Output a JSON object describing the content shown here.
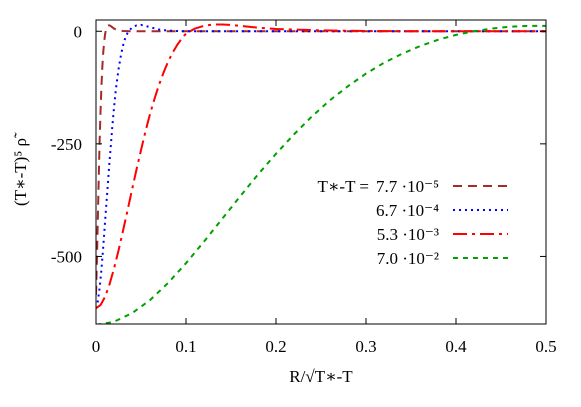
{
  "chart_data": {
    "type": "line",
    "title": "",
    "xlabel": "R/√T∗-T",
    "ylabel": "(T∗-T)⁵ ρ̃",
    "xlim": [
      0,
      0.5
    ],
    "ylim": [
      -650,
      25
    ],
    "x_ticks": [
      0,
      0.1,
      0.2,
      0.3,
      0.4,
      0.5
    ],
    "x_tick_labels": [
      "0",
      "0.1",
      "0.2",
      "0.3",
      "0.4",
      "0.5"
    ],
    "y_ticks": [
      0,
      -250,
      -500
    ],
    "y_tick_labels": [
      "0",
      "-250",
      "-500"
    ],
    "grid": false,
    "legend_position": "right",
    "legend_prefix": "T∗-T =",
    "series": [
      {
        "name": "7.7 ·10⁻⁵",
        "color": "#a52a2a",
        "dash": "dashed",
        "x": [
          0.0,
          0.001,
          0.002,
          0.003,
          0.004,
          0.005,
          0.006,
          0.007,
          0.008,
          0.009,
          0.01,
          0.011,
          0.012,
          0.013,
          0.014,
          0.015,
          0.016,
          0.018,
          0.02,
          0.022,
          0.025,
          0.03,
          0.04,
          0.5
        ],
        "y": [
          -585,
          -510,
          -420,
          -330,
          -245,
          -180,
          -125,
          -80,
          -48,
          -25,
          -8,
          3,
          9,
          12,
          13,
          13,
          12,
          9,
          6,
          4,
          2,
          0.5,
          0,
          0
        ]
      },
      {
        "name": "6.7 ·10⁻⁴",
        "color": "#0000ff",
        "dash": "dotted",
        "x": [
          0.0,
          0.002,
          0.004,
          0.006,
          0.008,
          0.01,
          0.012,
          0.015,
          0.018,
          0.02,
          0.022,
          0.025,
          0.028,
          0.03,
          0.033,
          0.036,
          0.04,
          0.045,
          0.05,
          0.055,
          0.06,
          0.07,
          0.08,
          0.09,
          0.1,
          0.5
        ],
        "y": [
          -615,
          -600,
          -570,
          -530,
          -480,
          -425,
          -370,
          -290,
          -215,
          -170,
          -130,
          -85,
          -50,
          -32,
          -12,
          0,
          8,
          13,
          14,
          12,
          9,
          4,
          1.5,
          0.5,
          0,
          0
        ]
      },
      {
        "name": "5.3 ·10⁻³",
        "color": "#ff0000",
        "dash": "dash-dot",
        "x": [
          0.0,
          0.005,
          0.01,
          0.015,
          0.02,
          0.025,
          0.03,
          0.035,
          0.04,
          0.045,
          0.05,
          0.055,
          0.06,
          0.065,
          0.07,
          0.075,
          0.08,
          0.085,
          0.09,
          0.095,
          0.1,
          0.11,
          0.12,
          0.13,
          0.14,
          0.15,
          0.16,
          0.18,
          0.2,
          0.25,
          0.3,
          0.35,
          0.4,
          0.5
        ],
        "y": [
          -615,
          -608,
          -590,
          -562,
          -527,
          -487,
          -443,
          -398,
          -352,
          -307,
          -264,
          -222,
          -184,
          -150,
          -119,
          -92,
          -68,
          -48,
          -31,
          -17,
          -5,
          6,
          12,
          15,
          15,
          14,
          12,
          8,
          5,
          2,
          0.5,
          0,
          0,
          0
        ]
      },
      {
        "name": "7.0 ·10⁻²",
        "color": "#00a000",
        "dash": "short-dashed",
        "x": [
          0.0,
          0.02,
          0.04,
          0.06,
          0.08,
          0.1,
          0.12,
          0.14,
          0.16,
          0.18,
          0.2,
          0.22,
          0.24,
          0.26,
          0.28,
          0.3,
          0.32,
          0.34,
          0.36,
          0.38,
          0.4,
          0.42,
          0.44,
          0.46,
          0.48,
          0.5
        ],
        "y": [
          -652,
          -645,
          -626,
          -597,
          -559,
          -515,
          -467,
          -417,
          -367,
          -318,
          -272,
          -229,
          -189,
          -153,
          -122,
          -94,
          -70,
          -50,
          -33,
          -19,
          -8,
          0,
          6,
          10,
          12,
          12
        ]
      }
    ]
  }
}
